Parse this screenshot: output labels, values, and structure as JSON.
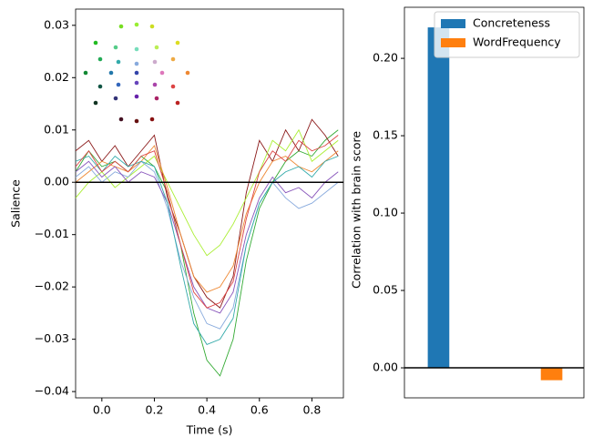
{
  "chart_data": [
    {
      "type": "line",
      "xlabel": "Time (s)",
      "ylabel": "Salience",
      "x": [
        -0.1,
        -0.05,
        0,
        0.05,
        0.1,
        0.15,
        0.2,
        0.25,
        0.3,
        0.35,
        0.4,
        0.45,
        0.5,
        0.55,
        0.6,
        0.65,
        0.7,
        0.75,
        0.8,
        0.85,
        0.9
      ],
      "series": [
        {
          "color": "#33aa33",
          "values": [
            0.002,
            0.006,
            0.003,
            0.004,
            0.002,
            0.005,
            0.003,
            -0.002,
            -0.012,
            -0.025,
            -0.034,
            -0.037,
            -0.03,
            -0.015,
            -0.005,
            0.0,
            0.004,
            0.006,
            0.005,
            0.008,
            0.01
          ]
        },
        {
          "color": "#8b1a1a",
          "values": [
            0.006,
            0.008,
            0.004,
            0.007,
            0.003,
            0.006,
            0.009,
            -0.003,
            -0.01,
            -0.018,
            -0.022,
            -0.024,
            -0.018,
            -0.002,
            0.008,
            0.004,
            0.01,
            0.006,
            0.012,
            0.009,
            0.005
          ]
        },
        {
          "color": "#aaee33",
          "values": [
            -0.003,
            0.0,
            0.002,
            -0.001,
            0.001,
            0.003,
            0.005,
            0.0,
            -0.005,
            -0.01,
            -0.014,
            -0.012,
            -0.008,
            -0.003,
            0.002,
            0.008,
            0.006,
            0.01,
            0.004,
            0.006,
            0.008
          ]
        },
        {
          "color": "#88aadd",
          "values": [
            0.001,
            0.003,
            0.0,
            0.002,
            0.001,
            0.004,
            0.002,
            -0.005,
            -0.015,
            -0.022,
            -0.027,
            -0.028,
            -0.024,
            -0.012,
            -0.004,
            0.0,
            -0.003,
            -0.005,
            -0.004,
            -0.002,
            0.0
          ]
        },
        {
          "color": "#ee8833",
          "values": [
            0.0,
            0.002,
            0.004,
            0.003,
            0.002,
            0.004,
            0.007,
            -0.001,
            -0.01,
            -0.018,
            -0.021,
            -0.02,
            -0.016,
            -0.006,
            0.0,
            0.004,
            0.005,
            0.003,
            0.002,
            0.004,
            0.006
          ]
        },
        {
          "color": "#8855bb",
          "values": [
            0.002,
            0.004,
            0.001,
            0.003,
            0.0,
            0.002,
            0.001,
            -0.004,
            -0.012,
            -0.02,
            -0.024,
            -0.025,
            -0.021,
            -0.01,
            -0.003,
            0.001,
            -0.002,
            -0.001,
            -0.003,
            0.0,
            0.002
          ]
        },
        {
          "color": "#33aaaa",
          "values": [
            0.004,
            0.005,
            0.002,
            0.005,
            0.003,
            0.004,
            0.003,
            -0.004,
            -0.016,
            -0.027,
            -0.031,
            -0.03,
            -0.026,
            -0.012,
            -0.004,
            0.0,
            0.002,
            0.003,
            0.001,
            0.004,
            0.005
          ]
        },
        {
          "color": "#dd4444",
          "values": [
            0.003,
            0.006,
            0.002,
            0.004,
            0.002,
            0.005,
            0.006,
            -0.002,
            -0.012,
            -0.021,
            -0.024,
            -0.023,
            -0.019,
            -0.007,
            0.002,
            0.006,
            0.004,
            0.008,
            0.006,
            0.007,
            0.009
          ]
        }
      ],
      "xlim": [
        -0.1,
        0.92
      ],
      "xticks": [
        {
          "value": 0,
          "label": "0.0"
        },
        0.2,
        0.4,
        0.6,
        0.8
      ],
      "ylim": [
        -0.0412,
        0.0331
      ],
      "yticks": [
        {
          "value": -0.04,
          "label": "−0.04"
        },
        {
          "value": -0.03,
          "label": "−0.03"
        },
        {
          "value": -0.02,
          "label": "−0.02"
        },
        {
          "value": -0.01,
          "label": "−0.01"
        },
        {
          "value": 0,
          "label": "0.00"
        },
        0.01,
        0.02,
        0.03
      ]
    },
    {
      "type": "bar",
      "ylabel": "Correlation with brain score",
      "categories": [
        null,
        null
      ],
      "series": [
        {
          "name": "Concreteness",
          "color": "#1f77b4",
          "values": [
            0.22,
            null
          ]
        },
        {
          "name": "WordFrequency",
          "color": "#ff7f0e",
          "values": [
            null,
            -0.008
          ]
        }
      ],
      "ylim": [
        -0.0194,
        0.233
      ],
      "yticks": [
        {
          "value": 0,
          "label": "0.00"
        },
        0.05,
        {
          "value": 0.1,
          "label": "0.10"
        },
        0.15,
        {
          "value": 0.2,
          "label": "0.20"
        }
      ],
      "legend": "upper right"
    }
  ]
}
